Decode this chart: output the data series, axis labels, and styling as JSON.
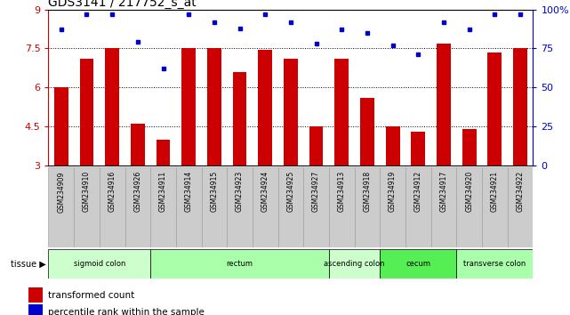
{
  "title": "GDS3141 / 217752_s_at",
  "samples": [
    "GSM234909",
    "GSM234910",
    "GSM234916",
    "GSM234926",
    "GSM234911",
    "GSM234914",
    "GSM234915",
    "GSM234923",
    "GSM234924",
    "GSM234925",
    "GSM234927",
    "GSM234913",
    "GSM234918",
    "GSM234919",
    "GSM234912",
    "GSM234917",
    "GSM234920",
    "GSM234921",
    "GSM234922"
  ],
  "bar_values": [
    6.0,
    7.1,
    7.5,
    4.6,
    4.0,
    7.5,
    7.5,
    6.6,
    7.45,
    7.1,
    4.5,
    7.1,
    5.6,
    4.5,
    4.3,
    7.7,
    4.4,
    7.35,
    7.5
  ],
  "dot_values": [
    87,
    97,
    97,
    79,
    62,
    97,
    92,
    88,
    97,
    92,
    78,
    87,
    85,
    77,
    71,
    92,
    87,
    97,
    97
  ],
  "bar_color": "#cc0000",
  "dot_color": "#0000cc",
  "ylim_left": [
    3,
    9
  ],
  "ylim_right": [
    0,
    100
  ],
  "yticks_left": [
    3,
    4.5,
    6,
    7.5,
    9
  ],
  "yticks_right": [
    0,
    25,
    50,
    75,
    100
  ],
  "ytick_labels_left": [
    "3",
    "4.5",
    "6",
    "7.5",
    "9"
  ],
  "ytick_labels_right": [
    "0",
    "25",
    "50",
    "75",
    "100%"
  ],
  "hlines": [
    4.5,
    6.0,
    7.5
  ],
  "tissue_groups": [
    {
      "label": "sigmoid colon",
      "start": 0,
      "end": 4,
      "color": "#ccffcc"
    },
    {
      "label": "rectum",
      "start": 4,
      "end": 11,
      "color": "#aaffaa"
    },
    {
      "label": "ascending colon",
      "start": 11,
      "end": 13,
      "color": "#ccffcc"
    },
    {
      "label": "cecum",
      "start": 13,
      "end": 16,
      "color": "#55ee55"
    },
    {
      "label": "transverse colon",
      "start": 16,
      "end": 19,
      "color": "#aaffaa"
    }
  ],
  "tissue_label": "tissue",
  "legend_items": [
    {
      "color": "#cc0000",
      "label": "transformed count"
    },
    {
      "color": "#0000cc",
      "label": "percentile rank within the sample"
    }
  ],
  "bar_width": 0.55,
  "left_tick_color": "#cc0000",
  "right_tick_color": "#0000cc",
  "background_color": "#ffffff",
  "plot_bg_color": "#ffffff",
  "gray_box_color": "#cccccc",
  "box_edge_color": "#999999"
}
